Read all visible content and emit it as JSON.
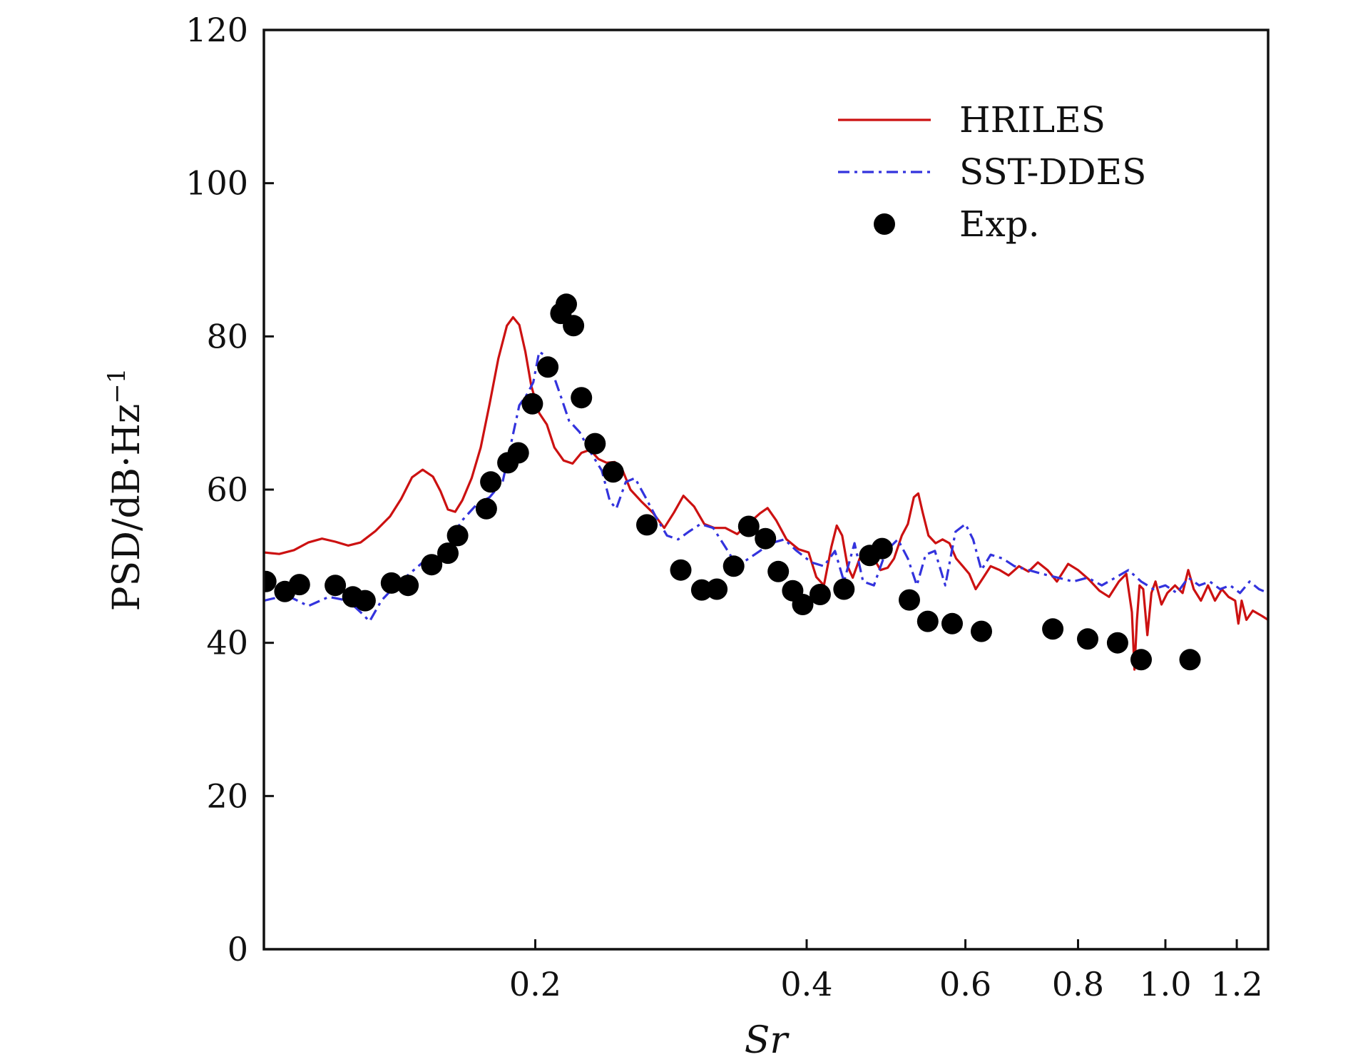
{
  "chart_data": {
    "type": "line",
    "xlabel": "Sr",
    "ylabel": "PSD/dB·Hz",
    "ylabel_superscript": "−1",
    "x_scale": "log",
    "xlim": [
      0.1,
      1.3
    ],
    "ylim": [
      0,
      120
    ],
    "x_ticks": [
      0.2,
      0.4,
      0.6,
      0.8,
      1.0,
      1.2
    ],
    "x_tick_labels": [
      "0.2",
      "0.4",
      "0.6",
      "0.8",
      "1.0",
      "1.2"
    ],
    "y_ticks": [
      0,
      20,
      40,
      60,
      80,
      100,
      120
    ],
    "y_tick_labels": [
      "0",
      "20",
      "40",
      "60",
      "80",
      "100",
      "120"
    ],
    "legend_position": "top-right",
    "grid": false,
    "series": [
      {
        "name": "HRILES",
        "style": "solid",
        "color": "#cc1111",
        "points": [
          [
            0.1,
            51.8
          ],
          [
            0.104,
            51.6
          ],
          [
            0.108,
            52.1
          ],
          [
            0.112,
            53.1
          ],
          [
            0.116,
            53.6
          ],
          [
            0.12,
            53.2
          ],
          [
            0.124,
            52.7
          ],
          [
            0.128,
            53.1
          ],
          [
            0.133,
            54.6
          ],
          [
            0.138,
            56.5
          ],
          [
            0.142,
            58.8
          ],
          [
            0.146,
            61.6
          ],
          [
            0.15,
            62.6
          ],
          [
            0.154,
            61.7
          ],
          [
            0.157,
            59.8
          ],
          [
            0.16,
            57.4
          ],
          [
            0.163,
            57.1
          ],
          [
            0.166,
            58.6
          ],
          [
            0.17,
            61.5
          ],
          [
            0.174,
            65.5
          ],
          [
            0.178,
            71.2
          ],
          [
            0.182,
            77.1
          ],
          [
            0.186,
            81.4
          ],
          [
            0.189,
            82.5
          ],
          [
            0.192,
            81.5
          ],
          [
            0.195,
            78.0
          ],
          [
            0.198,
            73.5
          ],
          [
            0.202,
            70.0
          ],
          [
            0.206,
            68.5
          ],
          [
            0.21,
            65.5
          ],
          [
            0.215,
            63.8
          ],
          [
            0.22,
            63.4
          ],
          [
            0.225,
            64.8
          ],
          [
            0.23,
            65.2
          ],
          [
            0.235,
            64.0
          ],
          [
            0.24,
            63.5
          ],
          [
            0.245,
            63.6
          ],
          [
            0.25,
            62.5
          ],
          [
            0.255,
            60.0
          ],
          [
            0.262,
            58.5
          ],
          [
            0.27,
            57.0
          ],
          [
            0.278,
            55.0
          ],
          [
            0.285,
            57.0
          ],
          [
            0.292,
            59.2
          ],
          [
            0.3,
            57.8
          ],
          [
            0.308,
            55.5
          ],
          [
            0.316,
            55.0
          ],
          [
            0.325,
            55.0
          ],
          [
            0.335,
            54.2
          ],
          [
            0.345,
            55.6
          ],
          [
            0.355,
            56.9
          ],
          [
            0.362,
            57.6
          ],
          [
            0.37,
            56.0
          ],
          [
            0.38,
            53.5
          ],
          [
            0.392,
            52.2
          ],
          [
            0.402,
            51.8
          ],
          [
            0.41,
            48.6
          ],
          [
            0.418,
            47.5
          ],
          [
            0.426,
            52.5
          ],
          [
            0.432,
            55.3
          ],
          [
            0.438,
            54.0
          ],
          [
            0.444,
            50.0
          ],
          [
            0.45,
            48.5
          ],
          [
            0.458,
            51.0
          ],
          [
            0.466,
            51.8
          ],
          [
            0.475,
            51.0
          ],
          [
            0.483,
            49.5
          ],
          [
            0.492,
            49.8
          ],
          [
            0.5,
            51.0
          ],
          [
            0.51,
            54.0
          ],
          [
            0.518,
            55.5
          ],
          [
            0.526,
            59.0
          ],
          [
            0.532,
            59.5
          ],
          [
            0.538,
            57.0
          ],
          [
            0.546,
            54.0
          ],
          [
            0.556,
            53.0
          ],
          [
            0.566,
            53.5
          ],
          [
            0.576,
            53.0
          ],
          [
            0.586,
            51.0
          ],
          [
            0.596,
            50.0
          ],
          [
            0.606,
            49.0
          ],
          [
            0.616,
            47.0
          ],
          [
            0.628,
            48.5
          ],
          [
            0.64,
            50.0
          ],
          [
            0.655,
            49.5
          ],
          [
            0.67,
            48.8
          ],
          [
            0.688,
            50.0
          ],
          [
            0.705,
            49.3
          ],
          [
            0.722,
            50.5
          ],
          [
            0.74,
            49.5
          ],
          [
            0.758,
            48.0
          ],
          [
            0.78,
            50.3
          ],
          [
            0.8,
            49.5
          ],
          [
            0.822,
            48.3
          ],
          [
            0.845,
            46.8
          ],
          [
            0.866,
            46.0
          ],
          [
            0.888,
            48.0
          ],
          [
            0.905,
            49.0
          ],
          [
            0.918,
            44.0
          ],
          [
            0.924,
            36.5
          ],
          [
            0.93,
            43.0
          ],
          [
            0.936,
            47.5
          ],
          [
            0.945,
            47.0
          ],
          [
            0.955,
            41.0
          ],
          [
            0.965,
            46.5
          ],
          [
            0.975,
            48.0
          ],
          [
            0.99,
            45.0
          ],
          [
            1.005,
            46.5
          ],
          [
            1.025,
            47.5
          ],
          [
            1.045,
            46.5
          ],
          [
            1.06,
            49.5
          ],
          [
            1.075,
            47.0
          ],
          [
            1.095,
            45.5
          ],
          [
            1.115,
            47.5
          ],
          [
            1.135,
            45.5
          ],
          [
            1.155,
            47.0
          ],
          [
            1.175,
            46.0
          ],
          [
            1.195,
            45.5
          ],
          [
            1.205,
            42.5
          ],
          [
            1.215,
            45.5
          ],
          [
            1.23,
            43.0
          ],
          [
            1.25,
            44.2
          ],
          [
            1.28,
            43.5
          ],
          [
            1.3,
            43.0
          ]
        ]
      },
      {
        "name": "SST-DDES",
        "style": "dashdot",
        "color": "#3333dd",
        "points": [
          [
            0.1,
            45.5
          ],
          [
            0.106,
            46.2
          ],
          [
            0.112,
            44.8
          ],
          [
            0.118,
            46.0
          ],
          [
            0.124,
            45.5
          ],
          [
            0.128,
            44.0
          ],
          [
            0.131,
            42.8
          ],
          [
            0.135,
            45.5
          ],
          [
            0.14,
            47.5
          ],
          [
            0.145,
            49.0
          ],
          [
            0.15,
            50.5
          ],
          [
            0.155,
            51.5
          ],
          [
            0.16,
            53.0
          ],
          [
            0.166,
            56.0
          ],
          [
            0.172,
            58.0
          ],
          [
            0.178,
            59.0
          ],
          [
            0.184,
            61.0
          ],
          [
            0.188,
            66.0
          ],
          [
            0.192,
            71.0
          ],
          [
            0.196,
            72.5
          ],
          [
            0.199,
            74.0
          ],
          [
            0.202,
            78.0
          ],
          [
            0.205,
            77.5
          ],
          [
            0.208,
            76.0
          ],
          [
            0.213,
            72.5
          ],
          [
            0.218,
            69.0
          ],
          [
            0.224,
            67.5
          ],
          [
            0.23,
            65.0
          ],
          [
            0.237,
            62.5
          ],
          [
            0.242,
            58.5
          ],
          [
            0.246,
            57.5
          ],
          [
            0.252,
            61.0
          ],
          [
            0.258,
            61.5
          ],
          [
            0.265,
            59.0
          ],
          [
            0.272,
            56.5
          ],
          [
            0.28,
            54.0
          ],
          [
            0.288,
            53.5
          ],
          [
            0.296,
            54.5
          ],
          [
            0.305,
            55.5
          ],
          [
            0.315,
            55.0
          ],
          [
            0.325,
            52.5
          ],
          [
            0.335,
            50.0
          ],
          [
            0.345,
            51.0
          ],
          [
            0.355,
            52.0
          ],
          [
            0.365,
            53.0
          ],
          [
            0.378,
            53.5
          ],
          [
            0.39,
            52.0
          ],
          [
            0.405,
            50.5
          ],
          [
            0.418,
            50.0
          ],
          [
            0.43,
            52.0
          ],
          [
            0.44,
            48.0
          ],
          [
            0.452,
            53.0
          ],
          [
            0.462,
            48.0
          ],
          [
            0.475,
            47.5
          ],
          [
            0.49,
            52.0
          ],
          [
            0.505,
            53.5
          ],
          [
            0.518,
            51.0
          ],
          [
            0.53,
            47.5
          ],
          [
            0.542,
            51.5
          ],
          [
            0.555,
            52.0
          ],
          [
            0.57,
            47.5
          ],
          [
            0.585,
            54.5
          ],
          [
            0.6,
            55.5
          ],
          [
            0.612,
            53.5
          ],
          [
            0.625,
            49.5
          ],
          [
            0.64,
            51.5
          ],
          [
            0.66,
            51.0
          ],
          [
            0.68,
            50.0
          ],
          [
            0.705,
            49.5
          ],
          [
            0.73,
            49.0
          ],
          [
            0.76,
            48.5
          ],
          [
            0.79,
            48.0
          ],
          [
            0.82,
            48.5
          ],
          [
            0.85,
            47.5
          ],
          [
            0.88,
            48.5
          ],
          [
            0.91,
            49.5
          ],
          [
            0.94,
            48.0
          ],
          [
            0.97,
            47.0
          ],
          [
            1.0,
            47.5
          ],
          [
            1.03,
            46.5
          ],
          [
            1.06,
            48.5
          ],
          [
            1.09,
            47.5
          ],
          [
            1.12,
            48.0
          ],
          [
            1.15,
            47.0
          ],
          [
            1.18,
            47.5
          ],
          [
            1.21,
            46.5
          ],
          [
            1.24,
            48.0
          ],
          [
            1.27,
            47.0
          ],
          [
            1.3,
            46.5
          ]
        ]
      },
      {
        "name": "Exp.",
        "style": "markers",
        "color": "#000000",
        "points": [
          [
            0.1005,
            48.0
          ],
          [
            0.1055,
            46.7
          ],
          [
            0.1095,
            47.6
          ],
          [
            0.12,
            47.5
          ],
          [
            0.1255,
            46.0
          ],
          [
            0.1295,
            45.5
          ],
          [
            0.1385,
            47.8
          ],
          [
            0.1445,
            47.5
          ],
          [
            0.1535,
            50.2
          ],
          [
            0.16,
            51.7
          ],
          [
            0.164,
            54.0
          ],
          [
            0.1765,
            57.5
          ],
          [
            0.1785,
            61.0
          ],
          [
            0.1865,
            63.5
          ],
          [
            0.1915,
            64.8
          ],
          [
            0.1985,
            71.2
          ],
          [
            0.2065,
            76.0
          ],
          [
            0.2135,
            83.0
          ],
          [
            0.2165,
            84.2
          ],
          [
            0.2205,
            81.4
          ],
          [
            0.225,
            72.0
          ],
          [
            0.233,
            66.0
          ],
          [
            0.244,
            62.3
          ],
          [
            0.266,
            55.4
          ],
          [
            0.29,
            49.5
          ],
          [
            0.306,
            46.9
          ],
          [
            0.318,
            47.0
          ],
          [
            0.332,
            50.0
          ],
          [
            0.345,
            55.2
          ],
          [
            0.36,
            53.6
          ],
          [
            0.372,
            49.3
          ],
          [
            0.386,
            46.8
          ],
          [
            0.396,
            45.0
          ],
          [
            0.414,
            46.3
          ],
          [
            0.44,
            47.0
          ],
          [
            0.47,
            51.4
          ],
          [
            0.485,
            52.3
          ],
          [
            0.52,
            45.6
          ],
          [
            0.545,
            42.8
          ],
          [
            0.58,
            42.5
          ],
          [
            0.625,
            41.5
          ],
          [
            0.75,
            41.8
          ],
          [
            0.82,
            40.5
          ],
          [
            0.885,
            40.0
          ],
          [
            0.94,
            37.8
          ],
          [
            1.065,
            37.8
          ]
        ]
      }
    ]
  }
}
